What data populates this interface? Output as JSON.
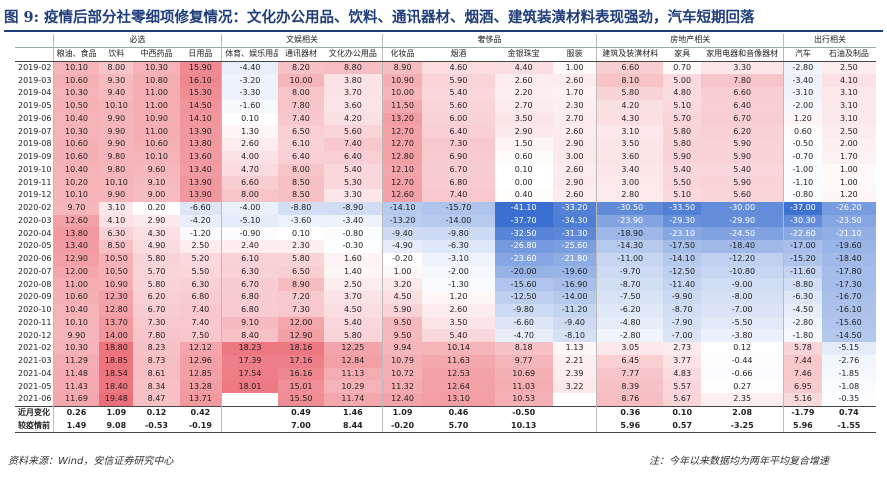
{
  "title": "图 9: 疫情后部分社零细项修复情况：文化办公用品、饮料、通讯器材、烟酒、建筑装潢材料表现强劲，汽车短期回落",
  "groups": [
    {
      "label": "必选",
      "span": 4
    },
    {
      "label": "文娱相关",
      "span": 3
    },
    {
      "label": "奢侈品",
      "span": 4
    },
    {
      "label": "房地产相关",
      "span": 3
    },
    {
      "label": "出行相关",
      "span": 2
    }
  ],
  "columns": [
    "粮油、食品",
    "饮料",
    "中西药品",
    "日用品",
    "体育、娱乐用品",
    "通讯器材",
    "文化办公用品",
    "化妆品",
    "烟酒",
    "金银珠宝",
    "服装",
    "建筑及装潢材料",
    "家具",
    "家用电器和音像器材",
    "汽车",
    "石油及制品"
  ],
  "rows": [
    {
      "label": "2019-02",
      "values": [
        "10.10",
        "8.00",
        "10.30",
        "15.90",
        "-4.40",
        "8.20",
        "8.80",
        "8.90",
        "4.60",
        "4.40",
        "1.00",
        "6.60",
        "0.70",
        "3.30",
        "-2.80",
        "2.50"
      ]
    },
    {
      "label": "2019-03",
      "values": [
        "10.60",
        "9.30",
        "10.80",
        "16.10",
        "-3.20",
        "10.00",
        "3.80",
        "10.90",
        "5.90",
        "2.60",
        "2.60",
        "8.10",
        "5.00",
        "7.80",
        "-3.40",
        "4.10"
      ]
    },
    {
      "label": "2019-04",
      "values": [
        "10.30",
        "9.40",
        "11.00",
        "15.30",
        "-3.30",
        "8.00",
        "3.70",
        "10.00",
        "5.40",
        "2.20",
        "1.70",
        "5.80",
        "4.80",
        "6.60",
        "-3.10",
        "3.10"
      ]
    },
    {
      "label": "2019-05",
      "values": [
        "10.50",
        "10.10",
        "11.00",
        "14.50",
        "-1.60",
        "7.80",
        "3.60",
        "11.50",
        "5.60",
        "2.70",
        "2.30",
        "4.20",
        "5.10",
        "6.40",
        "-2.00",
        "3.10"
      ]
    },
    {
      "label": "2019-06",
      "values": [
        "10.40",
        "9.90",
        "10.90",
        "14.10",
        "0.10",
        "7.40",
        "4.20",
        "13.20",
        "6.00",
        "3.50",
        "2.70",
        "4.30",
        "5.70",
        "6.70",
        "1.20",
        "3.10"
      ]
    },
    {
      "label": "2019-07",
      "values": [
        "10.30",
        "9.90",
        "11.00",
        "13.90",
        "1.30",
        "6.50",
        "5.60",
        "12.70",
        "6.40",
        "2.90",
        "2.60",
        "3.10",
        "5.80",
        "6.20",
        "0.60",
        "2.50"
      ]
    },
    {
      "label": "2019-08",
      "values": [
        "10.60",
        "9.90",
        "10.60",
        "13.80",
        "2.60",
        "6.10",
        "7.40",
        "12.70",
        "7.30",
        "1.50",
        "2.90",
        "3.50",
        "5.80",
        "5.90",
        "-0.50",
        "2.00"
      ]
    },
    {
      "label": "2019-09",
      "values": [
        "10.60",
        "9.80",
        "10.10",
        "13.60",
        "4.00",
        "6.40",
        "6.40",
        "12.80",
        "6.90",
        "0.60",
        "3.00",
        "3.60",
        "5.90",
        "5.90",
        "-0.70",
        "1.70"
      ]
    },
    {
      "label": "2019-10",
      "values": [
        "10.40",
        "9.80",
        "9.60",
        "13.40",
        "4.70",
        "8.00",
        "5.40",
        "12.10",
        "6.70",
        "0.10",
        "2.60",
        "3.40",
        "5.40",
        "5.40",
        "-1.00",
        "1.00"
      ]
    },
    {
      "label": "2019-11",
      "values": [
        "10.20",
        "10.10",
        "9.10",
        "13.90",
        "6.60",
        "8.50",
        "5.30",
        "12.70",
        "6.80",
        "0.00",
        "2.90",
        "3.00",
        "5.50",
        "5.90",
        "-1.10",
        "1.00"
      ]
    },
    {
      "label": "2019-12",
      "values": [
        "10.10",
        "9.90",
        "9.00",
        "13.90",
        "8.00",
        "8.50",
        "3.30",
        "12.60",
        "7.40",
        "0.40",
        "2.60",
        "2.80",
        "5.10",
        "5.60",
        "-0.80",
        "1.20"
      ]
    },
    {
      "label": "2020-02",
      "values": [
        "9.70",
        "3.10",
        "0.20",
        "-6.60",
        "-4.00",
        "-8.80",
        "-8.90",
        "-14.10",
        "-15.70",
        "-41.10",
        "-33.20",
        "-30.50",
        "-33.50",
        "-30.00",
        "-37.00",
        "-26.20"
      ]
    },
    {
      "label": "2020-03",
      "values": [
        "12.60",
        "4.10",
        "2.90",
        "-4.20",
        "-5.10",
        "-3.60",
        "-3.40",
        "-13.20",
        "-14.00",
        "-37.70",
        "-34.30",
        "-23.90",
        "-29.30",
        "-29.90",
        "-30.30",
        "-23.50"
      ]
    },
    {
      "label": "2020-04",
      "values": [
        "13.80",
        "6.30",
        "4.30",
        "-1.20",
        "-0.90",
        "0.10",
        "-0.80",
        "-9.40",
        "-9.80",
        "-32.50",
        "-31.30",
        "-18.90",
        "-23.10",
        "-24.50",
        "-22.60",
        "-21.10"
      ]
    },
    {
      "label": "2020-05",
      "values": [
        "13.40",
        "8.50",
        "4.90",
        "2.50",
        "2.40",
        "2.30",
        "-0.30",
        "-4.90",
        "-6.30",
        "-26.80",
        "-25.60",
        "-14.30",
        "-17.50",
        "-18.40",
        "-17.00",
        "-19.60"
      ]
    },
    {
      "label": "2020-06",
      "values": [
        "12.90",
        "10.50",
        "5.80",
        "5.20",
        "6.10",
        "5.80",
        "1.60",
        "-0.20",
        "-3.10",
        "-23.60",
        "-21.80",
        "-11.00",
        "-14.10",
        "-12.20",
        "-15.20",
        "-18.40"
      ]
    },
    {
      "label": "2020-07",
      "values": [
        "12.00",
        "10.50",
        "5.70",
        "5.50",
        "6.30",
        "6.50",
        "1.40",
        "1.00",
        "-2.00",
        "-20.00",
        "-19.60",
        "-9.70",
        "-12.50",
        "-10.80",
        "-11.60",
        "-17.80"
      ]
    },
    {
      "label": "2020-08",
      "values": [
        "11.00",
        "10.90",
        "5.80",
        "6.30",
        "6.70",
        "8.90",
        "2.50",
        "3.20",
        "-1.30",
        "-15.60",
        "-16.90",
        "-8.70",
        "-11.40",
        "-9.00",
        "-8.80",
        "-17.30"
      ]
    },
    {
      "label": "2020-09",
      "values": [
        "10.60",
        "12.30",
        "6.20",
        "6.80",
        "6.80",
        "7.20",
        "3.70",
        "4.50",
        "1.20",
        "-12.50",
        "-14.00",
        "-7.50",
        "-9.90",
        "-8.00",
        "-6.30",
        "-16.70"
      ]
    },
    {
      "label": "2020-10",
      "values": [
        "10.40",
        "12.80",
        "6.70",
        "7.40",
        "6.80",
        "7.30",
        "4.50",
        "5.90",
        "2.60",
        "-9.80",
        "-11.20",
        "-6.20",
        "-8.70",
        "-7.00",
        "-4.50",
        "-16.10"
      ]
    },
    {
      "label": "2020-11",
      "values": [
        "10.10",
        "13.70",
        "7.30",
        "7.40",
        "9.10",
        "12.00",
        "5.40",
        "9.50",
        "3.50",
        "-6.60",
        "-9.40",
        "-4.80",
        "-7.90",
        "-5.50",
        "-2.80",
        "-15.60"
      ]
    },
    {
      "label": "2020-12",
      "values": [
        "9.90",
        "14.00",
        "7.80",
        "7.50",
        "8.40",
        "12.90",
        "5.80",
        "9.50",
        "5.40",
        "-4.70",
        "-8.10",
        "-2.80",
        "-7.00",
        "-3.80",
        "-1.80",
        "-14.50"
      ]
    },
    {
      "label": "2021-02",
      "values": [
        "10.30",
        "18.80",
        "8.23",
        "12.12",
        "18.23",
        "18.16",
        "12.25",
        "9.94",
        "10.14",
        "8.18",
        "1.13",
        "3.05",
        "2.73",
        "0.12",
        "5.78",
        "-5.15"
      ]
    },
    {
      "label": "2021-03",
      "values": [
        "11.29",
        "18.85",
        "8.73",
        "12.96",
        "17.39",
        "17.16",
        "12.84",
        "10.79",
        "11.63",
        "9.77",
        "2.21",
        "6.45",
        "3.77",
        "-0.44",
        "7.44",
        "-2.76"
      ]
    },
    {
      "label": "2021-04",
      "values": [
        "11.48",
        "18.54",
        "8.61",
        "12.85",
        "17.54",
        "16.16",
        "11.13",
        "10.72",
        "12.53",
        "10.69",
        "2.39",
        "7.77",
        "4.83",
        "-0.66",
        "7.46",
        "-1.85"
      ]
    },
    {
      "label": "2021-05",
      "values": [
        "11.43",
        "18.40",
        "8.34",
        "13.28",
        "18.01",
        "15.01",
        "10.29",
        "11.32",
        "12.64",
        "11.03",
        "3.22",
        "8.39",
        "5.57",
        "0.27",
        "6.95",
        "-1.08"
      ]
    },
    {
      "label": "2021-06",
      "values": [
        "11.69",
        "19.48",
        "8.47",
        "13.71",
        "",
        "15.50",
        "11.74",
        "12.40",
        "13.10",
        "10.53",
        "",
        "8.76",
        "5.67",
        "2.35",
        "5.16",
        "-0.35"
      ]
    },
    {
      "label": "近月变化",
      "values": [
        "0.26",
        "1.09",
        "0.12",
        "0.42",
        "",
        "0.49",
        "1.46",
        "1.09",
        "0.46",
        "-0.50",
        "",
        "0.36",
        "0.10",
        "2.08",
        "-1.79",
        "0.74"
      ]
    },
    {
      "label": "较疫情前",
      "values": [
        "1.49",
        "9.08",
        "-0.53",
        "-0.19",
        "",
        "7.00",
        "8.44",
        "-0.20",
        "5.70",
        "10.13",
        "",
        "5.96",
        "0.57",
        "-3.25",
        "5.96",
        "-1.55"
      ]
    }
  ],
  "source": "资料来源：Wind，安信证券研究中心",
  "note": "注：今年以来数据均为两年平均复合增速",
  "colors": {
    "title": "#1f3d7a",
    "positive": "#e8323c",
    "negative": "#3a6fd0"
  }
}
